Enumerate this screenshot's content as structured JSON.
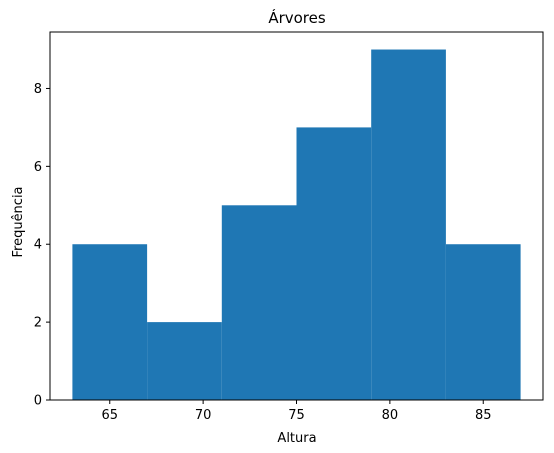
{
  "chart_data": {
    "type": "bar",
    "title": "Árvores",
    "xlabel": "Altura",
    "ylabel": "Frequência",
    "bins": [
      {
        "start": 63,
        "end": 67,
        "value": 4
      },
      {
        "start": 67,
        "end": 71,
        "value": 2
      },
      {
        "start": 71,
        "end": 75,
        "value": 5
      },
      {
        "start": 75,
        "end": 79,
        "value": 7
      },
      {
        "start": 79,
        "end": 83,
        "value": 9
      },
      {
        "start": 83,
        "end": 87,
        "value": 4
      }
    ],
    "xlim": [
      61.8,
      88.2
    ],
    "ylim": [
      0,
      9.45
    ],
    "xticks": [
      65,
      70,
      75,
      80,
      85
    ],
    "yticks": [
      0,
      2,
      4,
      6,
      8
    ],
    "bar_color": "#1f77b4",
    "grid": false
  }
}
